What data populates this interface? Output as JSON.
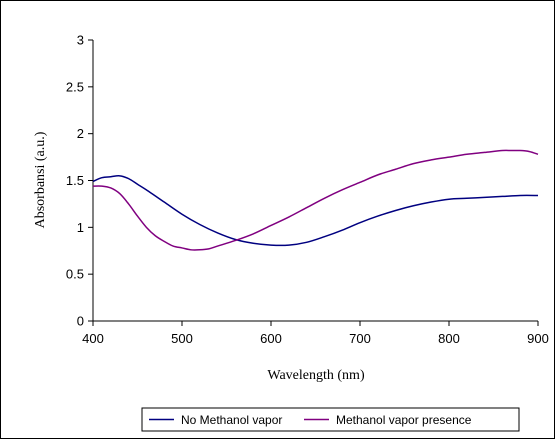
{
  "chart_data": {
    "type": "line",
    "title": "",
    "xlabel": "Wavelength (nm)",
    "ylabel": "Absorbansi (a.u.)",
    "xlim": [
      400,
      900
    ],
    "ylim": [
      0,
      3
    ],
    "xticks": [
      "400",
      "500",
      "600",
      "700",
      "800",
      "900"
    ],
    "yticks": [
      "0",
      "0.5",
      "1",
      "1.5",
      "2",
      "2.5",
      "3"
    ],
    "grid": false,
    "legend_position": "bottom",
    "series": [
      {
        "name": "No Methanol vapor",
        "color": "#000080",
        "x": [
          400,
          410,
          420,
          430,
          440,
          450,
          460,
          480,
          500,
          520,
          540,
          560,
          580,
          600,
          620,
          640,
          660,
          680,
          700,
          720,
          740,
          760,
          780,
          800,
          820,
          840,
          860,
          880,
          900
        ],
        "y": [
          1.49,
          1.53,
          1.54,
          1.55,
          1.52,
          1.46,
          1.4,
          1.27,
          1.14,
          1.03,
          0.94,
          0.87,
          0.83,
          0.81,
          0.81,
          0.84,
          0.9,
          0.97,
          1.05,
          1.12,
          1.18,
          1.23,
          1.27,
          1.3,
          1.31,
          1.32,
          1.33,
          1.34,
          1.34
        ]
      },
      {
        "name": "Methanol vapor presence",
        "color": "#800080",
        "x": [
          400,
          410,
          420,
          430,
          440,
          450,
          460,
          470,
          480,
          490,
          500,
          510,
          520,
          530,
          540,
          560,
          580,
          600,
          620,
          640,
          660,
          680,
          700,
          720,
          740,
          760,
          780,
          800,
          820,
          840,
          860,
          870,
          880,
          890,
          900
        ],
        "y": [
          1.44,
          1.44,
          1.42,
          1.36,
          1.25,
          1.12,
          1.0,
          0.91,
          0.85,
          0.8,
          0.78,
          0.76,
          0.76,
          0.77,
          0.8,
          0.86,
          0.93,
          1.02,
          1.11,
          1.21,
          1.31,
          1.4,
          1.48,
          1.56,
          1.62,
          1.68,
          1.72,
          1.75,
          1.78,
          1.8,
          1.82,
          1.82,
          1.82,
          1.81,
          1.78
        ]
      }
    ]
  }
}
